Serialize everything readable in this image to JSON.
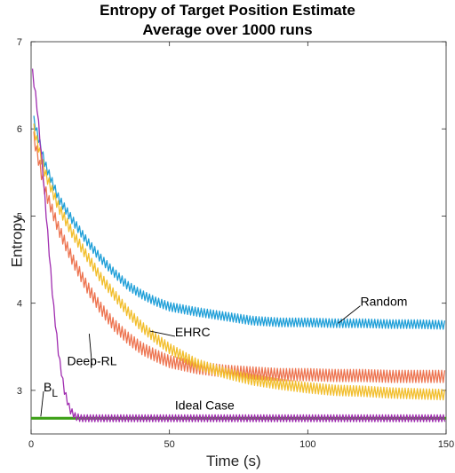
{
  "chart_data": {
    "type": "line",
    "title": [
      "Entropy of Target Position Estimate",
      "Average over 1000 runs"
    ],
    "xlabel": "Time (s)",
    "ylabel": "Entropy",
    "xlim": [
      0,
      150
    ],
    "ylim": [
      2.5,
      7
    ],
    "xticks": [
      0,
      50,
      100,
      150
    ],
    "yticks": [
      3,
      4,
      5,
      6,
      7
    ],
    "grid": false,
    "legend": "none",
    "series": [
      {
        "name": "Random",
        "color": "#1f9fd8",
        "oscillation": 0.05,
        "points": [
          [
            1,
            6.1
          ],
          [
            5,
            5.6
          ],
          [
            10,
            5.2
          ],
          [
            15,
            4.95
          ],
          [
            20,
            4.72
          ],
          [
            25,
            4.52
          ],
          [
            30,
            4.35
          ],
          [
            35,
            4.2
          ],
          [
            40,
            4.1
          ],
          [
            45,
            4.02
          ],
          [
            50,
            3.96
          ],
          [
            55,
            3.93
          ],
          [
            60,
            3.9
          ],
          [
            70,
            3.85
          ],
          [
            80,
            3.8
          ],
          [
            90,
            3.78
          ],
          [
            100,
            3.78
          ],
          [
            110,
            3.77
          ],
          [
            120,
            3.77
          ],
          [
            130,
            3.76
          ],
          [
            140,
            3.76
          ],
          [
            150,
            3.75
          ]
        ]
      },
      {
        "name": "EHRC",
        "color": "#f2be2c",
        "oscillation": 0.06,
        "points": [
          [
            1,
            6.0
          ],
          [
            5,
            5.5
          ],
          [
            10,
            5.1
          ],
          [
            15,
            4.8
          ],
          [
            20,
            4.55
          ],
          [
            25,
            4.3
          ],
          [
            30,
            4.1
          ],
          [
            35,
            3.9
          ],
          [
            40,
            3.73
          ],
          [
            45,
            3.6
          ],
          [
            50,
            3.48
          ],
          [
            60,
            3.3
          ],
          [
            70,
            3.2
          ],
          [
            80,
            3.12
          ],
          [
            90,
            3.07
          ],
          [
            100,
            3.03
          ],
          [
            110,
            3.0
          ],
          [
            120,
            2.99
          ],
          [
            130,
            2.97
          ],
          [
            140,
            2.96
          ],
          [
            150,
            2.95
          ]
        ]
      },
      {
        "name": "Deep-RL",
        "color": "#ed7450",
        "oscillation": 0.07,
        "points": [
          [
            1,
            5.9
          ],
          [
            5,
            5.3
          ],
          [
            10,
            4.85
          ],
          [
            15,
            4.5
          ],
          [
            20,
            4.2
          ],
          [
            25,
            3.95
          ],
          [
            30,
            3.75
          ],
          [
            35,
            3.6
          ],
          [
            40,
            3.48
          ],
          [
            45,
            3.4
          ],
          [
            50,
            3.33
          ],
          [
            60,
            3.26
          ],
          [
            70,
            3.22
          ],
          [
            80,
            3.2
          ],
          [
            90,
            3.18
          ],
          [
            100,
            3.18
          ],
          [
            110,
            3.17
          ],
          [
            120,
            3.17
          ],
          [
            130,
            3.16
          ],
          [
            140,
            3.16
          ],
          [
            150,
            3.16
          ]
        ]
      },
      {
        "name": "Ideal Case",
        "color": "#a02db0",
        "oscillation": 0.04,
        "points": [
          [
            0.5,
            6.65
          ],
          [
            2,
            6.3
          ],
          [
            4,
            5.6
          ],
          [
            6,
            4.8
          ],
          [
            8,
            4.0
          ],
          [
            10,
            3.4
          ],
          [
            12,
            3.0
          ],
          [
            14,
            2.78
          ],
          [
            16,
            2.7
          ],
          [
            18,
            2.68
          ],
          [
            25,
            2.68
          ],
          [
            50,
            2.68
          ],
          [
            100,
            2.68
          ],
          [
            150,
            2.68
          ]
        ]
      },
      {
        "name": "B_L",
        "color": "#3da017",
        "oscillation": 0,
        "points": [
          [
            0,
            2.68
          ],
          [
            150,
            2.68
          ]
        ]
      }
    ],
    "annotations": [
      {
        "text": "Random",
        "at": [
          119,
          3.97
        ],
        "arrow_to": [
          111,
          3.77
        ]
      },
      {
        "text": "EHRC",
        "at": [
          52,
          3.62
        ],
        "arrow_to": [
          43,
          3.68
        ]
      },
      {
        "text": "Deep-RL",
        "at": [
          22,
          3.29
        ],
        "arrow_to": [
          21,
          3.65
        ]
      },
      {
        "text": "Ideal Case",
        "at": [
          52,
          2.78
        ],
        "arrow_to": null
      },
      {
        "text": "B",
        "sub": "L",
        "at": [
          4.5,
          2.99
        ],
        "arrow_to": [
          3.5,
          2.7
        ]
      }
    ]
  }
}
